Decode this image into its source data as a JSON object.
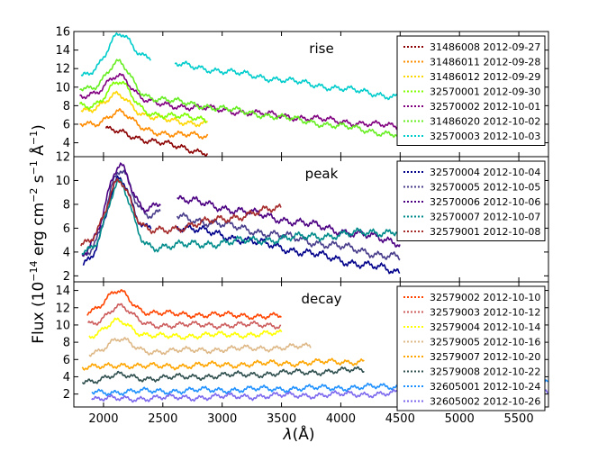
{
  "figure": {
    "ylabel_main": "Flux (10",
    "ylabel_exp1": "−14",
    "ylabel_mid": " erg cm",
    "ylabel_exp2": "−2",
    "ylabel_s": " s",
    "ylabel_exp3": "−1",
    "ylabel_A": " Å",
    "ylabel_exp4": "−1",
    "ylabel_close": ")",
    "xlabel_lambda": "λ",
    "xlabel_unit": "(Å)"
  },
  "chart_data": [
    {
      "type": "line",
      "title": "rise",
      "xlim": [
        1750,
        5750
      ],
      "ylim": [
        2.5,
        16
      ],
      "yticks": [
        4,
        6,
        8,
        10,
        12,
        14,
        16
      ],
      "xticks": [
        2000,
        2500,
        3000,
        3500,
        4000,
        4500,
        5000,
        5500
      ],
      "xticklabels": [
        "2000",
        "2500",
        "3000",
        "3500",
        "4000",
        "4500",
        "5000",
        "5500"
      ],
      "legend_position": "top-right",
      "series": [
        {
          "name": "31486008 2012-09-27",
          "color": "#8b0000",
          "segments": [
            {
              "x0": 2020,
              "x1": 2880,
              "y0": 5.2,
              "y1": 2.9,
              "bump": 0.3
            }
          ]
        },
        {
          "name": "31486011 2012-09-28",
          "color": "#ff8c00",
          "segments": [
            {
              "x0": 1800,
              "x1": 2880,
              "y0": 6.0,
              "y1": 4.6,
              "bump": 1.8
            }
          ]
        },
        {
          "name": "31486012 2012-09-29",
          "color": "#ffd700",
          "segments": [
            {
              "x0": 1810,
              "x1": 2880,
              "y0": 7.5,
              "y1": 6.0,
              "bump": 2.2
            }
          ]
        },
        {
          "name": "32570001 2012-09-30",
          "color": "#7fff00",
          "segments": [
            {
              "x0": 1800,
              "x1": 2870,
              "y0": 8.0,
              "y1": 6.5,
              "bump": 3.0
            }
          ]
        },
        {
          "name": "32570002 2012-10-01",
          "color": "#800080",
          "segments": [
            {
              "x0": 1800,
              "x1": 4500,
              "y0": 9.0,
              "y1": 5.7,
              "bump": 2.8
            }
          ]
        },
        {
          "name": "31486020 2012-10-02",
          "color": "#66ee22",
          "segments": [
            {
              "x0": 1800,
              "x1": 4500,
              "y0": 10.0,
              "y1": 4.8,
              "bump": 3.2
            }
          ]
        },
        {
          "name": "32570003 2012-10-03",
          "color": "#00cccc",
          "segments": [
            {
              "x0": 1810,
              "x1": 2400,
              "y0": 11.0,
              "y1": 13.0,
              "bump": 3.8
            },
            {
              "x0": 2600,
              "x1": 4500,
              "y0": 12.5,
              "y1": 8.9,
              "bump": 0
            }
          ]
        }
      ]
    },
    {
      "type": "line",
      "title": "peak",
      "xlim": [
        1750,
        5750
      ],
      "ylim": [
        1.5,
        12
      ],
      "yticks": [
        2,
        4,
        6,
        8,
        10,
        12
      ],
      "xticks": [
        2000,
        2500,
        3000,
        3500,
        4000,
        4500,
        5000,
        5500
      ],
      "xticklabels": [],
      "legend_position": "top-right",
      "series": [
        {
          "name": "32570004 2012-10-04",
          "color": "#00008b",
          "segments": [
            {
              "x0": 1830,
              "x1": 2400,
              "y0": 3.0,
              "y1": 6.0,
              "bump": 5.5
            },
            {
              "x0": 2620,
              "x1": 4500,
              "y0": 6.2,
              "y1": 2.3,
              "bump": 0
            }
          ]
        },
        {
          "name": "32570005 2012-10-05",
          "color": "#483d8b",
          "segments": [
            {
              "x0": 1830,
              "x1": 2480,
              "y0": 3.5,
              "y1": 7.5,
              "bump": 5.5
            },
            {
              "x0": 2620,
              "x1": 4500,
              "y0": 7.0,
              "y1": 3.5,
              "bump": 0
            }
          ]
        },
        {
          "name": "32570006 2012-10-06",
          "color": "#4b0082",
          "segments": [
            {
              "x0": 1820,
              "x1": 2480,
              "y0": 3.8,
              "y1": 8.0,
              "bump": 5.5
            },
            {
              "x0": 2620,
              "x1": 4500,
              "y0": 8.5,
              "y1": 4.8,
              "bump": 0
            }
          ]
        },
        {
          "name": "32570007 2012-10-07",
          "color": "#008b8b",
          "segments": [
            {
              "x0": 1820,
              "x1": 4500,
              "y0": 4.0,
              "y1": 5.8,
              "bump": 5.5
            }
          ]
        },
        {
          "name": "32579001 2012-10-08",
          "color": "#a52a2a",
          "segments": [
            {
              "x0": 1810,
              "x1": 3500,
              "y0": 4.5,
              "y1": 7.7,
              "bump": 5.0
            }
          ]
        }
      ]
    },
    {
      "type": "line",
      "title": "decay",
      "xlim": [
        1750,
        5750
      ],
      "ylim": [
        0.5,
        15
      ],
      "yticks": [
        2,
        4,
        6,
        8,
        10,
        12,
        14
      ],
      "xticks": [
        2000,
        2500,
        3000,
        3500,
        4000,
        4500,
        5000,
        5500
      ],
      "xticklabels": [
        "2000",
        "2500",
        "3000",
        "3500",
        "4000",
        "4500",
        "5000",
        "5500"
      ],
      "legend_position": "top-right",
      "series": [
        {
          "name": "32579002 2012-10-10",
          "color": "#ff4500",
          "segments": [
            {
              "x0": 1860,
              "x1": 3500,
              "y0": 11.5,
              "y1": 11.0,
              "bump": 2.5
            }
          ]
        },
        {
          "name": "32579003 2012-10-12",
          "color": "#cd5c5c",
          "segments": [
            {
              "x0": 1870,
              "x1": 3500,
              "y0": 10.0,
              "y1": 10.0,
              "bump": 2.2
            }
          ]
        },
        {
          "name": "32579004 2012-10-14",
          "color": "#ffff00",
          "segments": [
            {
              "x0": 1880,
              "x1": 3500,
              "y0": 8.5,
              "y1": 9.0,
              "bump": 2.0
            }
          ]
        },
        {
          "name": "32579005 2012-10-16",
          "color": "#deb887",
          "segments": [
            {
              "x0": 1880,
              "x1": 3750,
              "y0": 6.7,
              "y1": 7.5,
              "bump": 1.5
            }
          ]
        },
        {
          "name": "32579007 2012-10-20",
          "color": "#ffa500",
          "segments": [
            {
              "x0": 1820,
              "x1": 4200,
              "y0": 5.0,
              "y1": 5.8,
              "bump": 0.3
            }
          ]
        },
        {
          "name": "32579008 2012-10-22",
          "color": "#2f4f4f",
          "segments": [
            {
              "x0": 1820,
              "x1": 4200,
              "y0": 3.5,
              "y1": 4.8,
              "bump": 0.5
            }
          ]
        },
        {
          "name": "32605001 2012-10-24",
          "color": "#1e90ff",
          "segments": [
            {
              "x0": 1900,
              "x1": 5750,
              "y0": 2.2,
              "y1": 3.2,
              "bump": 0
            }
          ]
        },
        {
          "name": "32605002 2012-10-26",
          "color": "#7b68ee",
          "segments": [
            {
              "x0": 1900,
              "x1": 5750,
              "y0": 1.4,
              "y1": 2.4,
              "bump": 0
            }
          ]
        }
      ]
    }
  ]
}
